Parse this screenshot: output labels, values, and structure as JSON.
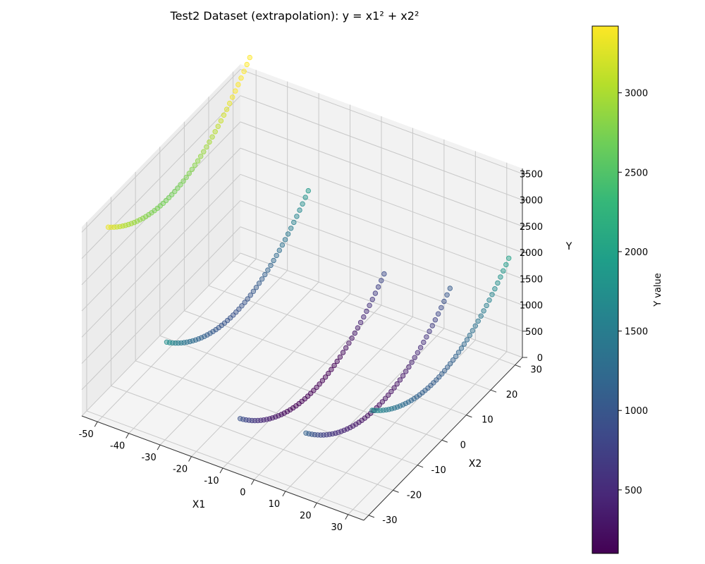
{
  "chart_data": {
    "type": "scatter",
    "projection": "3d",
    "title": "Test2 Dataset (extrapolation): y = x1² + x2²",
    "xlabel": "X1",
    "ylabel": "X2",
    "zlabel": "Y",
    "xlim": [
      -55,
      35
    ],
    "ylim": [
      -32,
      33
    ],
    "zlim": [
      0,
      3600
    ],
    "xticks": [
      -50,
      -40,
      -30,
      -20,
      -10,
      0,
      10,
      20,
      30
    ],
    "yticks": [
      -30,
      -20,
      -10,
      0,
      10,
      20,
      30
    ],
    "zticks": [
      0,
      500,
      1000,
      1500,
      2000,
      2500,
      3000,
      3500
    ],
    "grid": true,
    "colormap": "viridis",
    "marker_alpha": 0.45,
    "point_function": "y = x1² + x2²",
    "series": [
      {
        "x1": -52,
        "x2": [
          -25,
          33
        ],
        "points": 50
      },
      {
        "x1": -31,
        "x2": [
          -28,
          30
        ],
        "points": 50
      },
      {
        "x1": -6,
        "x2": [
          -30,
          29
        ],
        "points": 50
      },
      {
        "x1": 15,
        "x2": [
          -30,
          29
        ],
        "points": 50
      },
      {
        "x1": 33,
        "x2": [
          -26,
          30
        ],
        "points": 50
      }
    ],
    "colorbar": {
      "label": "Y value",
      "range": [
        100,
        3420
      ],
      "ticks": [
        500,
        1000,
        1500,
        2000,
        2500,
        3000
      ]
    }
  }
}
